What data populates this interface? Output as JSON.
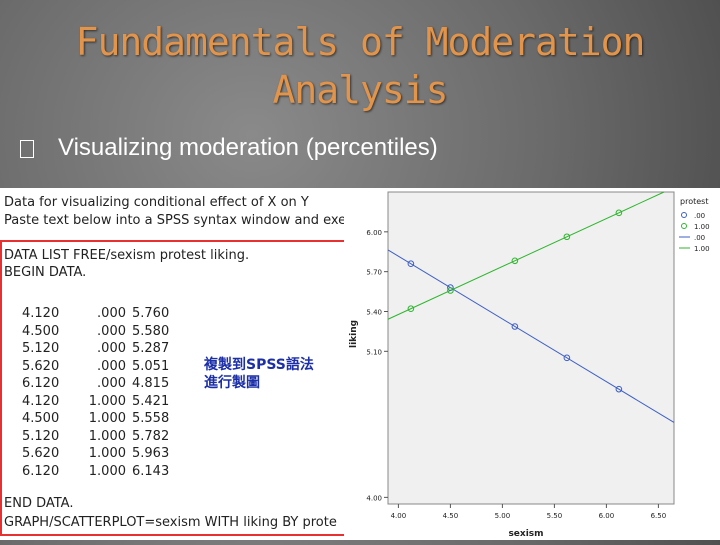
{
  "slide": {
    "title_line1": "Fundamentals of Moderation",
    "title_line2": "Analysis",
    "bullet_text": "Visualizing moderation (percentiles)"
  },
  "syntax": {
    "header_line1": "Data for visualizing conditional effect of X on Y",
    "header_line2": "Paste text below into a SPSS syntax window and exe",
    "data_list": "DATA LIST FREE/sexism protest liking.",
    "begin_data": "BEGIN DATA.",
    "rows": [
      [
        "4.120",
        ".000",
        "5.760"
      ],
      [
        "4.500",
        ".000",
        "5.580"
      ],
      [
        "5.120",
        ".000",
        "5.287"
      ],
      [
        "5.620",
        ".000",
        "5.051"
      ],
      [
        "6.120",
        ".000",
        "4.815"
      ],
      [
        "4.120",
        "1.000",
        "5.421"
      ],
      [
        "4.500",
        "1.000",
        "5.558"
      ],
      [
        "5.120",
        "1.000",
        "5.782"
      ],
      [
        "5.620",
        "1.000",
        "5.963"
      ],
      [
        "6.120",
        "1.000",
        "6.143"
      ]
    ],
    "end_data": "END DATA.",
    "graph_cmd": "GRAPH/SCATTERPLOT=sexism WITH liking BY prote",
    "annotation_line1": "複製到SPSS語法",
    "annotation_line2": "進行製圖"
  },
  "chart_data": {
    "type": "scatter",
    "xlabel": "sexism",
    "ylabel": "liking",
    "xlim": [
      3.9,
      6.65
    ],
    "ylim": [
      3.95,
      6.3
    ],
    "x_ticks": [
      "4.00",
      "4.50",
      "5.00",
      "5.50",
      "6.00",
      "6.50"
    ],
    "x_tick_values": [
      4.0,
      4.5,
      5.0,
      5.5,
      6.0,
      6.5
    ],
    "y_ticks": [
      "4.00",
      "5.10",
      "5.40",
      "5.70",
      "6.00"
    ],
    "y_tick_values": [
      4.0,
      5.1,
      5.4,
      5.7,
      6.0
    ],
    "legend_title": "protest",
    "legend_items": [
      ".00",
      "1.00",
      ".00",
      "1.00"
    ],
    "series": [
      {
        "name": ".00",
        "color": "#3d5fc4",
        "x": [
          4.12,
          4.5,
          5.12,
          5.62,
          6.12
        ],
        "y": [
          5.76,
          5.58,
          5.287,
          5.051,
          4.815
        ]
      },
      {
        "name": "1.00",
        "color": "#2db52d",
        "x": [
          4.12,
          4.5,
          5.12,
          5.62,
          6.12
        ],
        "y": [
          5.421,
          5.558,
          5.782,
          5.963,
          6.143
        ]
      }
    ]
  }
}
